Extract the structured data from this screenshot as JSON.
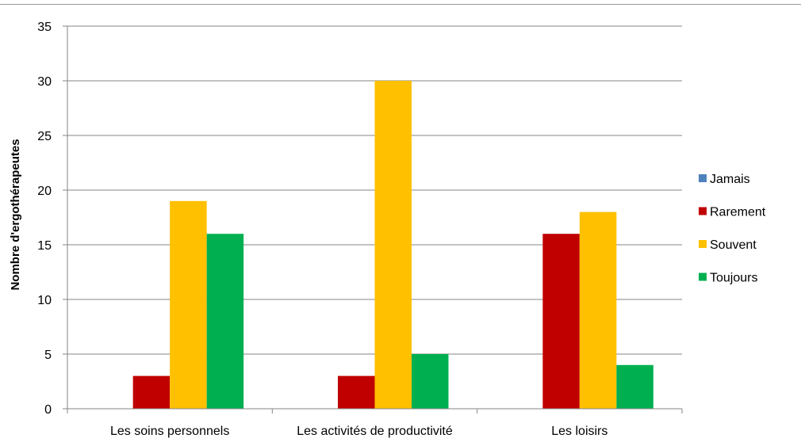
{
  "chart_data": {
    "type": "bar",
    "title": "",
    "xlabel": "",
    "ylabel": "Nombre d'ergothérapeutes",
    "ylim": [
      0,
      35
    ],
    "yticks": [
      0,
      5,
      10,
      15,
      20,
      25,
      30,
      35
    ],
    "grid": true,
    "legend_position": "right",
    "categories": [
      "Les soins personnels",
      "Les activités de productivité",
      "Les loisirs"
    ],
    "series": [
      {
        "name": "Jamais",
        "color": "#4f81bd",
        "values": [
          0,
          0,
          0
        ]
      },
      {
        "name": "Rarement",
        "color": "#c00000",
        "values": [
          3,
          3,
          16
        ]
      },
      {
        "name": "Souvent",
        "color": "#ffc000",
        "values": [
          19,
          30,
          18
        ]
      },
      {
        "name": "Toujours",
        "color": "#00b050",
        "values": [
          16,
          5,
          4
        ]
      }
    ]
  }
}
